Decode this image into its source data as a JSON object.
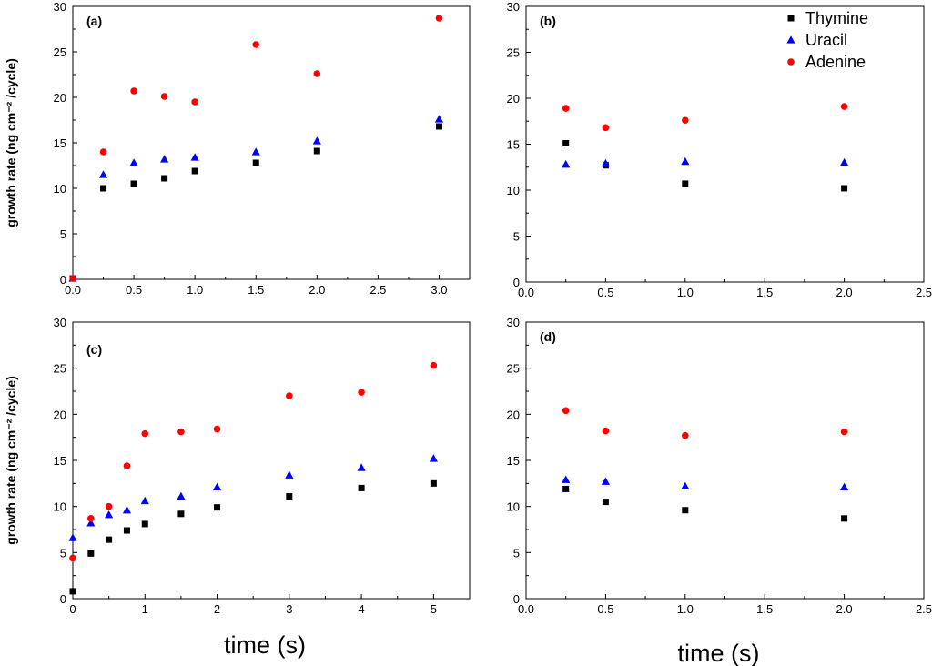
{
  "chart_data": [
    {
      "type": "scatter",
      "panel_label": "(a)",
      "ylabel": "growth rate (ng cm⁻² /cycle)",
      "xlabel": "",
      "xlim": [
        0,
        3.25
      ],
      "ylim": [
        0,
        30
      ],
      "x_ticks": [
        0,
        0.5,
        1.0,
        1.5,
        2.0,
        2.5,
        3.0
      ],
      "x_tick_labels": [
        "0.0",
        "0.5",
        "1.0",
        "1.5",
        "2.0",
        "2.5",
        "3.0"
      ],
      "y_ticks": [
        0,
        5,
        10,
        15,
        20,
        25,
        30
      ],
      "y_tick_labels": [
        "0",
        "5",
        "10",
        "15",
        "20",
        "25",
        "30"
      ],
      "series": [
        {
          "name": "Thymine",
          "x": [
            0,
            0.25,
            0.5,
            0.75,
            1.0,
            1.5,
            2.0,
            3.0
          ],
          "y": [
            0.1,
            10.0,
            10.5,
            11.1,
            11.9,
            12.8,
            14.1,
            16.8
          ]
        },
        {
          "name": "Uracil",
          "x": [
            0,
            0.25,
            0.5,
            0.75,
            1.0,
            1.5,
            2.0,
            3.0
          ],
          "y": [
            0.1,
            11.5,
            12.8,
            13.2,
            13.4,
            14.0,
            15.2,
            17.6
          ]
        },
        {
          "name": "Adenine",
          "x": [
            0,
            0.25,
            0.5,
            0.75,
            1.0,
            1.5,
            2.0,
            3.0
          ],
          "y": [
            0.1,
            14.0,
            20.7,
            20.1,
            19.5,
            25.8,
            22.6,
            28.7
          ]
        }
      ]
    },
    {
      "type": "scatter",
      "panel_label": "(b)",
      "ylabel": "",
      "xlabel": "",
      "xlim": [
        0,
        2.5
      ],
      "ylim": [
        0,
        30
      ],
      "x_ticks": [
        0,
        0.5,
        1.0,
        1.5,
        2.0,
        2.5
      ],
      "x_tick_labels": [
        "0.0",
        "0.5",
        "1.0",
        "1.5",
        "2.0",
        "2.5"
      ],
      "y_ticks": [
        0,
        5,
        10,
        15,
        20,
        25,
        30
      ],
      "y_tick_labels": [
        "0",
        "5",
        "10",
        "15",
        "20",
        "25",
        "30"
      ],
      "series": [
        {
          "name": "Thymine",
          "x": [
            0.25,
            0.5,
            1.0,
            2.0
          ],
          "y": [
            15.1,
            12.7,
            10.7,
            10.2
          ]
        },
        {
          "name": "Uracil",
          "x": [
            0.25,
            0.5,
            1.0,
            2.0
          ],
          "y": [
            12.8,
            12.9,
            13.1,
            13.0
          ]
        },
        {
          "name": "Adenine",
          "x": [
            0.25,
            0.5,
            1.0,
            2.0
          ],
          "y": [
            18.9,
            16.8,
            17.6,
            19.1
          ]
        }
      ]
    },
    {
      "type": "scatter",
      "panel_label": "(c)",
      "ylabel": "growth rate (ng cm⁻² /cycle)",
      "xlabel": "time (s)",
      "xlim": [
        0,
        5.5
      ],
      "ylim": [
        0,
        30
      ],
      "x_ticks": [
        0,
        1,
        2,
        3,
        4,
        5
      ],
      "x_tick_labels": [
        "0",
        "1",
        "2",
        "3",
        "4",
        "5"
      ],
      "y_ticks": [
        0,
        5,
        10,
        15,
        20,
        25,
        30
      ],
      "y_tick_labels": [
        "0",
        "5",
        "10",
        "15",
        "20",
        "25",
        "30"
      ],
      "series": [
        {
          "name": "Thymine",
          "x": [
            0,
            0.25,
            0.5,
            0.75,
            1.0,
            1.5,
            2.0,
            3.0,
            4.0,
            5.0
          ],
          "y": [
            0.8,
            4.9,
            6.4,
            7.4,
            8.1,
            9.2,
            9.9,
            11.1,
            12.0,
            12.5
          ]
        },
        {
          "name": "Uracil",
          "x": [
            0,
            0.25,
            0.5,
            0.75,
            1.0,
            1.5,
            2.0,
            3.0,
            4.0,
            5.0
          ],
          "y": [
            6.6,
            8.2,
            9.1,
            9.6,
            10.6,
            11.1,
            12.1,
            13.4,
            14.2,
            15.2
          ]
        },
        {
          "name": "Adenine",
          "x": [
            0,
            0.25,
            0.5,
            0.75,
            1.0,
            1.5,
            2.0,
            3.0,
            4.0,
            5.0
          ],
          "y": [
            4.4,
            8.7,
            10.0,
            14.4,
            17.9,
            18.1,
            18.4,
            22.0,
            22.4,
            25.3
          ]
        }
      ]
    },
    {
      "type": "scatter",
      "panel_label": "(d)",
      "ylabel": "",
      "xlabel": "time (s)",
      "xlim": [
        0,
        2.5
      ],
      "ylim": [
        0,
        30
      ],
      "x_ticks": [
        0,
        0.5,
        1.0,
        1.5,
        2.0,
        2.5
      ],
      "x_tick_labels": [
        "0.0",
        "0.5",
        "1.0",
        "1.5",
        "2.0",
        "2.5"
      ],
      "y_ticks": [
        0,
        5,
        10,
        15,
        20,
        25,
        30
      ],
      "y_tick_labels": [
        "0",
        "5",
        "10",
        "15",
        "20",
        "25",
        "30"
      ],
      "series": [
        {
          "name": "Thymine",
          "x": [
            0.25,
            0.5,
            1.0,
            2.0
          ],
          "y": [
            11.9,
            10.5,
            9.6,
            8.7
          ]
        },
        {
          "name": "Uracil",
          "x": [
            0.25,
            0.5,
            1.0,
            2.0
          ],
          "y": [
            12.9,
            12.7,
            12.2,
            12.1
          ]
        },
        {
          "name": "Adenine",
          "x": [
            0.25,
            0.5,
            1.0,
            2.0
          ],
          "y": [
            20.4,
            18.2,
            17.7,
            18.1
          ]
        }
      ]
    }
  ],
  "legend": {
    "entries": [
      {
        "name": "Thymine",
        "marker": "square",
        "color": "#000000"
      },
      {
        "name": "Uracil",
        "marker": "triangle",
        "color": "#0000ff"
      },
      {
        "name": "Adenine",
        "marker": "circle",
        "color": "#ff0000"
      }
    ]
  }
}
